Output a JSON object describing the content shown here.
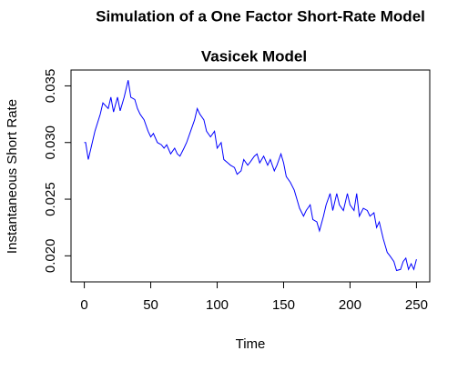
{
  "chart_data": {
    "type": "line",
    "title": "Simulation of a One Factor Short-Rate Model",
    "subtitle": "Vasicek Model",
    "x_label": "Time",
    "y_label": "Instantaneous Short Rate",
    "x": [
      0,
      1,
      3,
      5,
      8,
      12,
      14,
      18,
      20,
      22,
      25,
      27,
      30,
      33,
      35,
      38,
      40,
      42,
      45,
      48,
      50,
      52,
      55,
      58,
      60,
      62,
      65,
      68,
      70,
      72,
      75,
      77,
      80,
      83,
      85,
      87,
      90,
      92,
      95,
      98,
      100,
      103,
      105,
      108,
      110,
      113,
      115,
      118,
      120,
      123,
      125,
      128,
      130,
      132,
      135,
      138,
      140,
      143,
      145,
      148,
      150,
      152,
      155,
      158,
      160,
      162,
      165,
      167,
      170,
      172,
      175,
      177,
      180,
      182,
      185,
      187,
      190,
      192,
      195,
      198,
      200,
      203,
      205,
      207,
      210,
      213,
      215,
      218,
      220,
      222,
      225,
      228,
      230,
      233,
      235,
      238,
      240,
      242,
      244,
      246,
      248,
      250
    ],
    "series": [
      {
        "name": "Vasicek",
        "color": "#0000ff",
        "values": [
          0.03,
          0.03,
          0.0285,
          0.0295,
          0.031,
          0.0325,
          0.0335,
          0.033,
          0.034,
          0.0327,
          0.034,
          0.0328,
          0.034,
          0.0355,
          0.034,
          0.0338,
          0.033,
          0.0325,
          0.032,
          0.031,
          0.0305,
          0.0308,
          0.03,
          0.0298,
          0.0295,
          0.0298,
          0.029,
          0.0295,
          0.029,
          0.0288,
          0.0295,
          0.03,
          0.031,
          0.032,
          0.033,
          0.0325,
          0.032,
          0.031,
          0.0305,
          0.031,
          0.0295,
          0.03,
          0.0285,
          0.0282,
          0.028,
          0.0278,
          0.0272,
          0.0275,
          0.0285,
          0.028,
          0.0283,
          0.0288,
          0.029,
          0.0282,
          0.0288,
          0.028,
          0.0285,
          0.0275,
          0.028,
          0.029,
          0.0282,
          0.027,
          0.0265,
          0.0258,
          0.025,
          0.0242,
          0.0235,
          0.024,
          0.0245,
          0.0232,
          0.023,
          0.0222,
          0.0235,
          0.0245,
          0.0255,
          0.024,
          0.0255,
          0.0245,
          0.024,
          0.0255,
          0.0245,
          0.024,
          0.0255,
          0.0235,
          0.0242,
          0.024,
          0.0235,
          0.0238,
          0.0225,
          0.023,
          0.0215,
          0.0203,
          0.02,
          0.0195,
          0.0187,
          0.0188,
          0.0195,
          0.0198,
          0.0188,
          0.0193,
          0.0188,
          0.0197
        ]
      }
    ],
    "xlim": [
      -10,
      260
    ],
    "xticks": [
      0,
      50,
      100,
      150,
      200,
      250
    ],
    "ylim": [
      0.0177,
      0.0364
    ],
    "yticks": [
      {
        "value": 0.02,
        "label": "0.020"
      },
      0.025,
      {
        "value": 0.03,
        "label": "0.030"
      },
      0.035
    ],
    "grid": false
  }
}
